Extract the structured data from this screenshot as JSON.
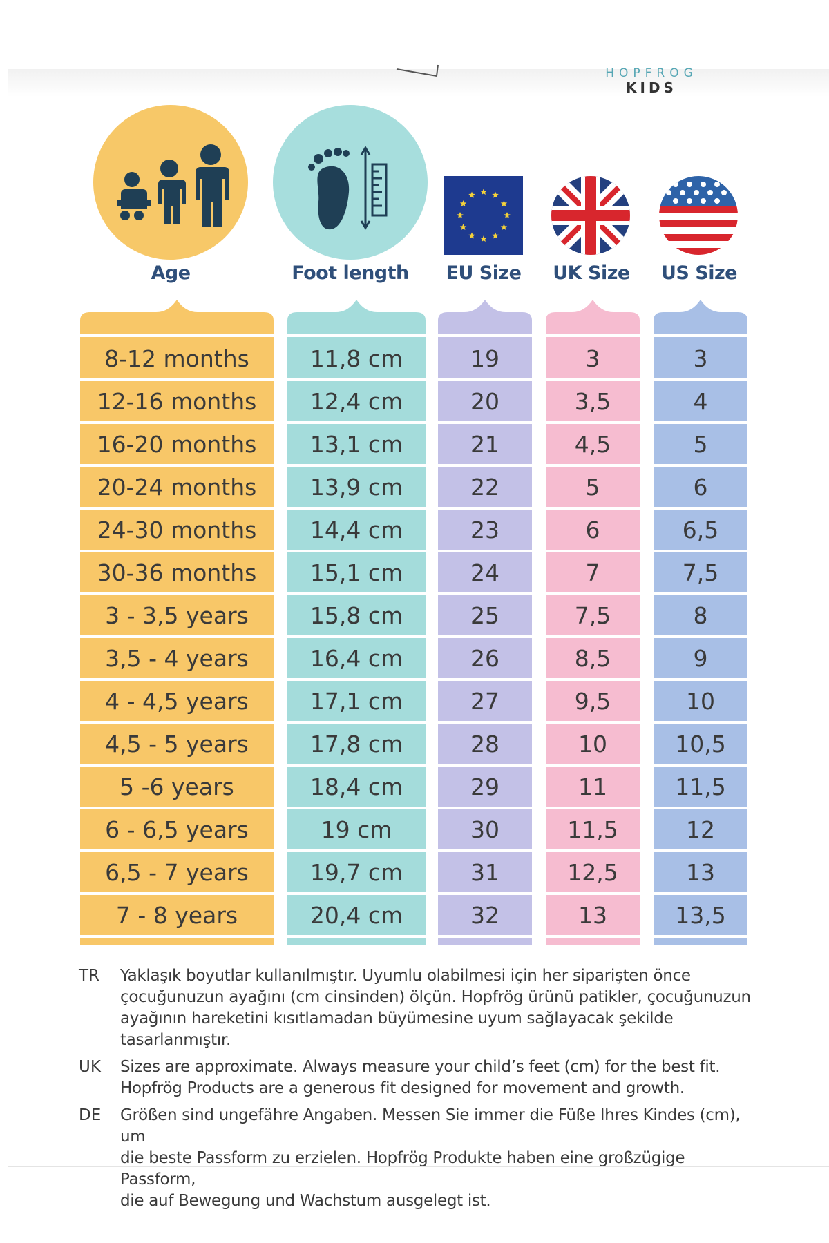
{
  "brand": {
    "top": "HOPFROG",
    "bottom": "KIDS"
  },
  "headers": {
    "age": "Age",
    "foot_length": "Foot length",
    "eu": "EU Size",
    "uk": "UK Size",
    "us": "US Size"
  },
  "icons": {
    "age": "children-icon",
    "foot": "footprint-ruler-icon",
    "eu": "eu-flag-icon",
    "uk": "uk-flag-icon",
    "us": "us-flag-icon"
  },
  "colors": {
    "age": "#f8c768",
    "foot": "#a4dcdb",
    "eu": "#c3c1e7",
    "uk": "#f6bcd0",
    "us": "#a8bfe6",
    "title": "#2f4f7a"
  },
  "rows": [
    {
      "age": "8-12 months",
      "foot": "11,8 cm",
      "eu": "19",
      "uk": "3",
      "us": "3"
    },
    {
      "age": "12-16 months",
      "foot": "12,4 cm",
      "eu": "20",
      "uk": "3,5",
      "us": "4"
    },
    {
      "age": "16-20 months",
      "foot": "13,1 cm",
      "eu": "21",
      "uk": "4,5",
      "us": "5"
    },
    {
      "age": "20-24 months",
      "foot": "13,9 cm",
      "eu": "22",
      "uk": "5",
      "us": "6"
    },
    {
      "age": "24-30 months",
      "foot": "14,4 cm",
      "eu": "23",
      "uk": "6",
      "us": "6,5"
    },
    {
      "age": "30-36 months",
      "foot": "15,1 cm",
      "eu": "24",
      "uk": "7",
      "us": "7,5"
    },
    {
      "age": "3 - 3,5 years",
      "foot": "15,8 cm",
      "eu": "25",
      "uk": "7,5",
      "us": "8"
    },
    {
      "age": "3,5 - 4 years",
      "foot": "16,4 cm",
      "eu": "26",
      "uk": "8,5",
      "us": "9"
    },
    {
      "age": "4 - 4,5 years",
      "foot": "17,1 cm",
      "eu": "27",
      "uk": "9,5",
      "us": "10"
    },
    {
      "age": "4,5 - 5 years",
      "foot": "17,8 cm",
      "eu": "28",
      "uk": "10",
      "us": "10,5"
    },
    {
      "age": "5 -6 years",
      "foot": "18,4 cm",
      "eu": "29",
      "uk": "11",
      "us": "11,5"
    },
    {
      "age": "6 - 6,5 years",
      "foot": "19 cm",
      "eu": "30",
      "uk": "11,5",
      "us": "12"
    },
    {
      "age": "6,5 - 7 years",
      "foot": "19,7 cm",
      "eu": "31",
      "uk": "12,5",
      "us": "13"
    },
    {
      "age": "7 - 8 years",
      "foot": "20,4 cm",
      "eu": "32",
      "uk": "13",
      "us": "13,5"
    }
  ],
  "notes": [
    {
      "lang": "TR",
      "lines": [
        "Yaklaşık boyutlar kullanılmıştır. Uyumlu olabilmesi için her siparişten önce",
        "çocuğunuzun ayağını (cm cinsinden) ölçün. Hopfrög ürünü patikler, çocuğunuzun",
        "ayağının hareketini kısıtlamadan büyümesine uyum sağlayacak şekilde tasarlanmıştır."
      ]
    },
    {
      "lang": "UK",
      "lines": [
        "Sizes are approximate. Always measure your child’s feet (cm) for the best fit.",
        "Hopfrög Products are a generous fit designed for movement and growth."
      ]
    },
    {
      "lang": "DE",
      "lines": [
        "Größen sind ungefähre Angaben. Messen Sie immer die Füße Ihres Kindes (cm), um",
        "die beste Passform zu erzielen. Hopfrög Produkte haben eine großzügige Passform,",
        "die auf Bewegung und Wachstum ausgelegt ist."
      ]
    }
  ]
}
